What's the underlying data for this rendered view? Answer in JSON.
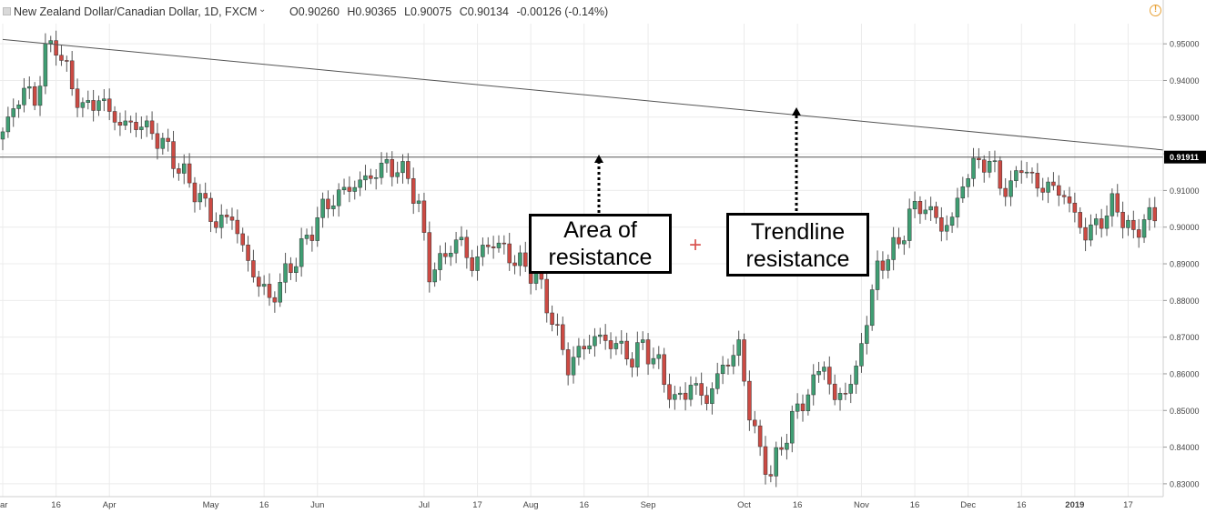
{
  "header": {
    "symbol": "New Zealand Dollar/Canadian Dollar, 1D, FXCM",
    "open": "O0.90260",
    "high": "H0.90365",
    "low": "L0.90075",
    "close": "C0.90134",
    "change": "-0.00126 (-0.14%)"
  },
  "annotations": {
    "area_line1": "Area of",
    "area_line2": "resistance",
    "trend_line1": "Trendline",
    "trend_line2": "resistance",
    "crosshair": "+"
  },
  "colors": {
    "up": "#3f9e73",
    "down": "#cc4a43",
    "line": "#444444",
    "price_label_bg": "#000000",
    "crosshair": "#d9534f"
  },
  "chart_data": {
    "type": "candlestick",
    "title": "New Zealand Dollar/Canadian Dollar, 1D, FXCM",
    "ylim": [
      0.8265,
      0.9555
    ],
    "y_ticks": [
      0.95,
      0.94,
      0.93,
      0.92,
      0.91,
      0.9,
      0.89,
      0.88,
      0.87,
      0.86,
      0.85,
      0.84,
      0.83
    ],
    "y_tick_labels": [
      "0.95000",
      "0.94000",
      "0.93000",
      "0.92000",
      "0.91000",
      "0.90000",
      "0.89000",
      "0.88000",
      "0.87000",
      "0.86000",
      "0.85000",
      "0.84000",
      "0.83000"
    ],
    "x_ticks": [
      {
        "label": "ar",
        "bar": 0
      },
      {
        "label": "16",
        "bar": 10
      },
      {
        "label": "Apr",
        "bar": 20
      },
      {
        "label": "May",
        "bar": 39
      },
      {
        "label": "16",
        "bar": 49
      },
      {
        "label": "Jun",
        "bar": 59
      },
      {
        "label": "Jul",
        "bar": 79
      },
      {
        "label": "17",
        "bar": 89
      },
      {
        "label": "Aug",
        "bar": 99
      },
      {
        "label": "16",
        "bar": 109
      },
      {
        "label": "Sep",
        "bar": 121
      },
      {
        "label": "Oct",
        "bar": 139
      },
      {
        "label": "16",
        "bar": 149
      },
      {
        "label": "Nov",
        "bar": 161
      },
      {
        "label": "16",
        "bar": 171
      },
      {
        "label": "Dec",
        "bar": 181
      },
      {
        "label": "16",
        "bar": 191
      },
      {
        "label": "2019",
        "bar": 201
      },
      {
        "label": "17",
        "bar": 211
      }
    ],
    "horizontal_level": 0.91911,
    "horizontal_level_label": "0.91911",
    "trendline": [
      {
        "bar": 0,
        "price": 0.9512
      },
      {
        "bar": 218,
        "price": 0.921
      }
    ],
    "keypoints": [
      [
        0,
        0.926
      ],
      [
        4,
        0.938
      ],
      [
        6,
        0.934
      ],
      [
        8,
        0.948
      ],
      [
        10,
        0.95
      ],
      [
        12,
        0.942
      ],
      [
        15,
        0.932
      ],
      [
        18,
        0.935
      ],
      [
        22,
        0.928
      ],
      [
        26,
        0.928
      ],
      [
        30,
        0.923
      ],
      [
        34,
        0.914
      ],
      [
        37,
        0.908
      ],
      [
        40,
        0.901
      ],
      [
        43,
        0.903
      ],
      [
        46,
        0.89
      ],
      [
        50,
        0.88
      ],
      [
        53,
        0.887
      ],
      [
        56,
        0.894
      ],
      [
        60,
        0.905
      ],
      [
        64,
        0.91
      ],
      [
        68,
        0.913
      ],
      [
        72,
        0.917
      ],
      [
        76,
        0.914
      ],
      [
        78,
        0.905
      ],
      [
        80,
        0.888
      ],
      [
        82,
        0.89
      ],
      [
        84,
        0.895
      ],
      [
        86,
        0.896
      ],
      [
        88,
        0.889
      ],
      [
        90,
        0.894
      ],
      [
        92,
        0.896
      ],
      [
        96,
        0.891
      ],
      [
        100,
        0.887
      ],
      [
        103,
        0.875
      ],
      [
        106,
        0.862
      ],
      [
        108,
        0.866
      ],
      [
        111,
        0.87
      ],
      [
        115,
        0.868
      ],
      [
        118,
        0.864
      ],
      [
        120,
        0.868
      ],
      [
        123,
        0.862
      ],
      [
        126,
        0.852
      ],
      [
        129,
        0.857
      ],
      [
        132,
        0.853
      ],
      [
        135,
        0.862
      ],
      [
        138,
        0.867
      ],
      [
        140,
        0.85
      ],
      [
        142,
        0.838
      ],
      [
        144,
        0.833
      ],
      [
        146,
        0.84
      ],
      [
        148,
        0.848
      ],
      [
        150,
        0.852
      ],
      [
        152,
        0.858
      ],
      [
        154,
        0.863
      ],
      [
        156,
        0.852
      ],
      [
        158,
        0.856
      ],
      [
        160,
        0.86
      ],
      [
        162,
        0.876
      ],
      [
        164,
        0.888
      ],
      [
        166,
        0.893
      ],
      [
        168,
        0.895
      ],
      [
        170,
        0.904
      ],
      [
        173,
        0.906
      ],
      [
        176,
        0.9
      ],
      [
        178,
        0.902
      ],
      [
        180,
        0.912
      ],
      [
        182,
        0.917
      ],
      [
        185,
        0.918
      ],
      [
        187,
        0.912
      ],
      [
        189,
        0.91
      ],
      [
        191,
        0.918
      ],
      [
        193,
        0.912
      ],
      [
        196,
        0.911
      ],
      [
        199,
        0.909
      ],
      [
        201,
        0.903
      ],
      [
        203,
        0.898
      ],
      [
        206,
        0.902
      ],
      [
        208,
        0.906
      ],
      [
        210,
        0.903
      ],
      [
        212,
        0.897
      ],
      [
        214,
        0.903
      ],
      [
        216,
        0.902
      ]
    ]
  }
}
